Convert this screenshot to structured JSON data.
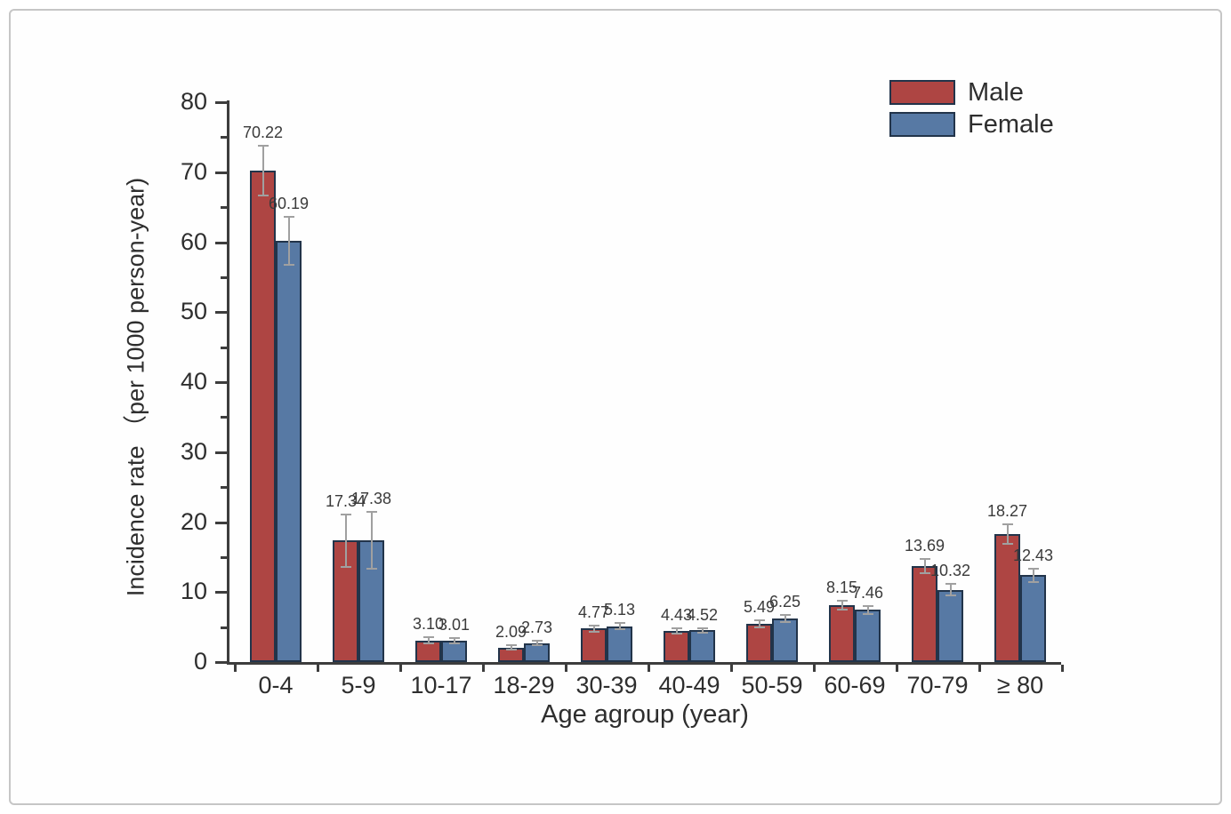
{
  "figure": {
    "background": "#fefefe",
    "frame_border_color": "#c6c6c6",
    "axis_color": "#3d3d3d",
    "error_bar_color": "#a0a0a0"
  },
  "chart_data": {
    "type": "bar",
    "title": "",
    "xlabel": "Age agroup (year)",
    "ylabel": "Incidence rate （per 1000 person-year)",
    "categories": [
      "0-4",
      "5-9",
      "10-17",
      "18-29",
      "30-39",
      "40-49",
      "50-59",
      "60-69",
      "70-79",
      "≥ 80"
    ],
    "series": [
      {
        "name": "Male",
        "color": "#ae4543",
        "values": [
          70.22,
          17.34,
          3.1,
          2.09,
          4.77,
          4.43,
          5.49,
          8.15,
          13.69,
          18.27
        ],
        "errors": [
          3.6,
          3.7,
          0.4,
          0.3,
          0.45,
          0.35,
          0.5,
          0.6,
          1.0,
          1.35
        ]
      },
      {
        "name": "Female",
        "color": "#5779a4",
        "values": [
          60.19,
          17.38,
          3.01,
          2.73,
          5.13,
          4.52,
          6.25,
          7.46,
          10.32,
          12.43
        ],
        "errors": [
          3.4,
          4.1,
          0.4,
          0.3,
          0.45,
          0.35,
          0.5,
          0.55,
          0.8,
          0.95
        ]
      }
    ],
    "ylim": [
      0,
      80
    ],
    "yticks": [
      0,
      10,
      20,
      30,
      40,
      50,
      60,
      70,
      80
    ],
    "ytick_minor_step": 5,
    "grid": false,
    "legend_position": "top-right",
    "value_label_decimals": 2
  }
}
